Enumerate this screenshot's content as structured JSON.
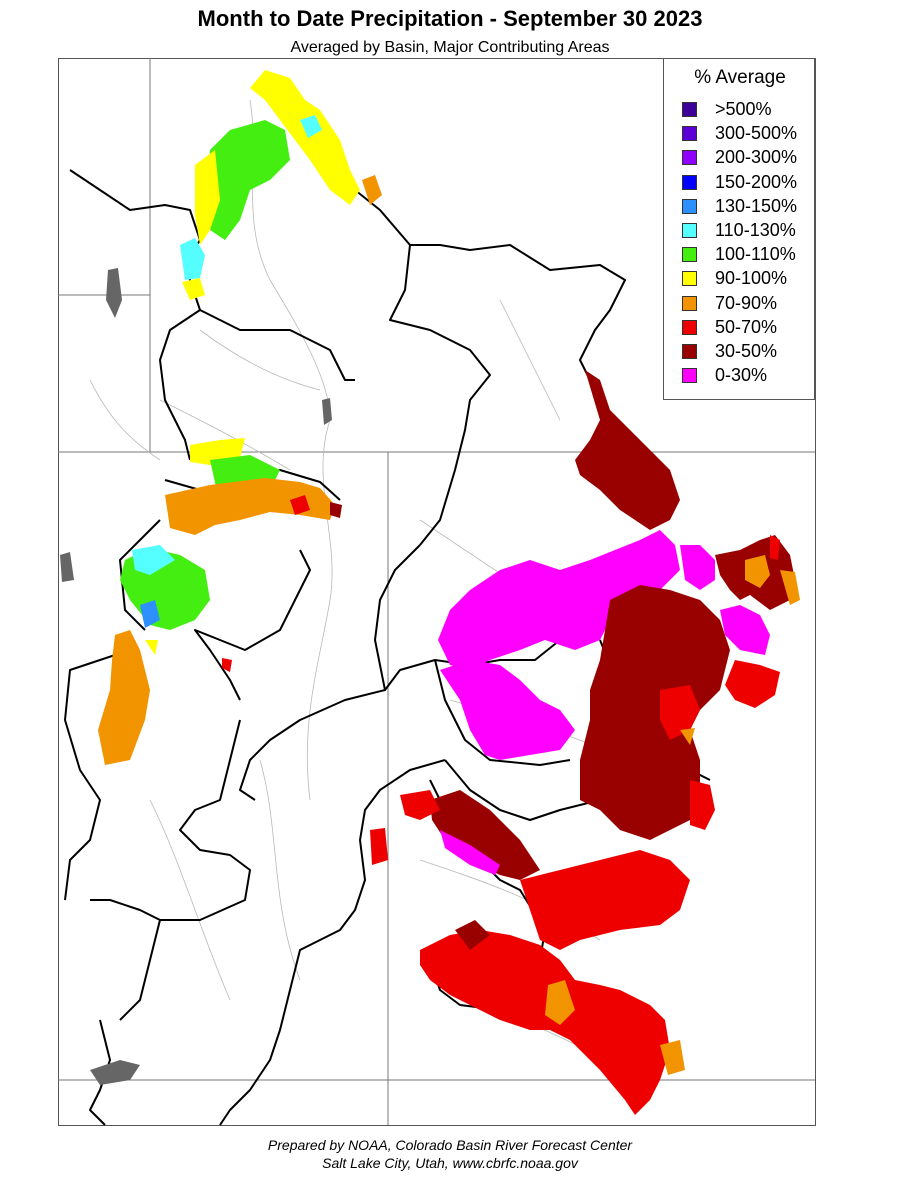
{
  "title": "Month to Date Precipitation - September 30 2023",
  "subtitle": "Averaged by Basin, Major Contributing Areas",
  "legend": {
    "title": "% Average",
    "items": [
      {
        "label": ">500%",
        "color": "#3d0099"
      },
      {
        "label": "300-500%",
        "color": "#5a00d6"
      },
      {
        "label": "200-300%",
        "color": "#9000ff"
      },
      {
        "label": "150-200%",
        "color": "#0000ff"
      },
      {
        "label": "130-150%",
        "color": "#2e8fff"
      },
      {
        "label": "110-130%",
        "color": "#55ffff"
      },
      {
        "label": "100-110%",
        "color": "#44ee11"
      },
      {
        "label": "90-100%",
        "color": "#ffff00"
      },
      {
        "label": "70-90%",
        "color": "#f29400"
      },
      {
        "label": "50-70%",
        "color": "#ee0000"
      },
      {
        "label": "30-50%",
        "color": "#990000"
      },
      {
        "label": "0-30%",
        "color": "#ff00ff"
      }
    ]
  },
  "footer": {
    "line1": "Prepared by NOAA, Colorado Basin River Forecast Center",
    "line2": "Salt Lake City, Utah, www.cbrfc.noaa.gov"
  }
}
